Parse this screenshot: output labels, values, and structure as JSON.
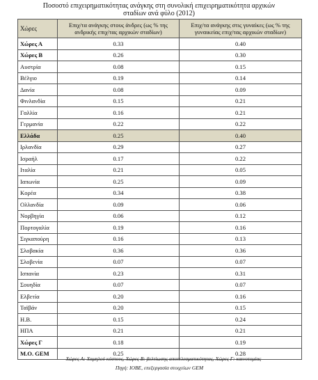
{
  "title_line1": "Ποσοστό επιχειρηματικότητας ανάγκης στη συνολική επιχειρηματικότητα αρχικών",
  "title_line2": "σταδίων ανά φύλο (2012)",
  "headers": {
    "country": "Χώρες",
    "men": "Επιχ/τα ανάγκης στους άνδρες (ως % της ανδρικής επιχ/τας αρχικών σταδίων)",
    "women": "Επιχ/τα ανάγκης στις γυναίκες (ως % της γυναικείας επιχ/τας αρχικών σταδίων)"
  },
  "rows": [
    {
      "name": "Χώρες Α",
      "men": "0.33",
      "women": "0.40",
      "bold": true,
      "highlight": false
    },
    {
      "name": "Χώρες Β",
      "men": "0.26",
      "women": "0.30",
      "bold": true,
      "highlight": false
    },
    {
      "name": "Αυστρία",
      "men": "0.08",
      "women": "0.15",
      "bold": false,
      "highlight": false
    },
    {
      "name": "Βέλγιο",
      "men": "0.19",
      "women": "0.14",
      "bold": false,
      "highlight": false
    },
    {
      "name": "Δανία",
      "men": "0.08",
      "women": "0.09",
      "bold": false,
      "highlight": false
    },
    {
      "name": "Φινλανδία",
      "men": "0.15",
      "women": "0.21",
      "bold": false,
      "highlight": false
    },
    {
      "name": "Γαλλία",
      "men": "0.16",
      "women": "0.21",
      "bold": false,
      "highlight": false
    },
    {
      "name": "Γερμανία",
      "men": "0.22",
      "women": "0.22",
      "bold": false,
      "highlight": false
    },
    {
      "name": "Ελλάδα",
      "men": "0.25",
      "women": "0.40",
      "bold": true,
      "highlight": true
    },
    {
      "name": "Ιρλανδία",
      "men": "0.29",
      "women": "0.27",
      "bold": false,
      "highlight": false
    },
    {
      "name": "Ισραήλ",
      "men": "0.17",
      "women": "0.22",
      "bold": false,
      "highlight": false
    },
    {
      "name": "Ιταλία",
      "men": "0.21",
      "women": "0.05",
      "bold": false,
      "highlight": false
    },
    {
      "name": "Ιαπωνία",
      "men": "0.25",
      "women": "0.09",
      "bold": false,
      "highlight": false
    },
    {
      "name": "Κορέα",
      "men": "0.34",
      "women": "0.38",
      "bold": false,
      "highlight": false
    },
    {
      "name": "Ολλανδία",
      "men": "0.09",
      "women": "0.06",
      "bold": false,
      "highlight": false
    },
    {
      "name": "Νορβηγία",
      "men": "0.06",
      "women": "0.12",
      "bold": false,
      "highlight": false
    },
    {
      "name": "Πορτογαλία",
      "men": "0.19",
      "women": "0.16",
      "bold": false,
      "highlight": false
    },
    {
      "name": "Σιγκαπούρη",
      "men": "0.16",
      "women": "0.13",
      "bold": false,
      "highlight": false
    },
    {
      "name": "Σλοβακία",
      "men": "0.36",
      "women": "0.36",
      "bold": false,
      "highlight": false
    },
    {
      "name": "Σλοβενία",
      "men": "0.07",
      "women": "0.07",
      "bold": false,
      "highlight": false
    },
    {
      "name": "Ισπανία",
      "men": "0.23",
      "women": "0.31",
      "bold": false,
      "highlight": false
    },
    {
      "name": "Σουηδία",
      "men": "0.07",
      "women": "0.07",
      "bold": false,
      "highlight": false
    },
    {
      "name": "Ελβετία",
      "men": "0.20",
      "women": "0.16",
      "bold": false,
      "highlight": false
    },
    {
      "name": "Ταϊβάν",
      "men": "0.20",
      "women": "0.15",
      "bold": false,
      "highlight": false
    },
    {
      "name": "Η.Β.",
      "men": "0.15",
      "women": "0.24",
      "bold": false,
      "highlight": false
    },
    {
      "name": "ΗΠΑ",
      "men": "0.21",
      "women": "0.21",
      "bold": false,
      "highlight": false
    },
    {
      "name": "Χώρες Γ",
      "men": "0.18",
      "women": "0.19",
      "bold": true,
      "highlight": false
    },
    {
      "name": "Μ.Ο. GEM",
      "men": "0.25",
      "women": "0.28",
      "bold": true,
      "highlight": false
    }
  ],
  "note": "Χώρες Α: Χαμηλού κόστους, Χώρες Β: βελτίωσης αποτελεσματικότητας, Χώρες Γ: καινοτομίας",
  "source": "Πηγή: ΙΟΒΕ, επεξεργασία στοιχείων GEM"
}
